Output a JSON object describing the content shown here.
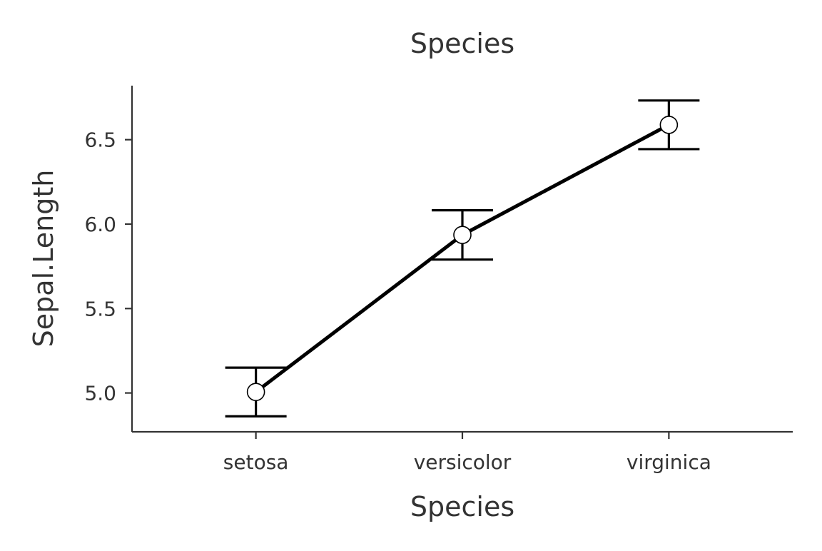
{
  "chart_data": {
    "type": "line",
    "title": "Species",
    "xlabel": "Species",
    "ylabel": "Sepal.Length",
    "categories": [
      "setosa",
      "versicolor",
      "virginica"
    ],
    "series": [
      {
        "values": [
          5.006,
          5.936,
          6.588
        ],
        "error_lower": [
          4.862,
          5.79,
          6.444
        ],
        "error_upper": [
          5.15,
          6.082,
          6.732
        ]
      }
    ],
    "ylim": [
      4.77,
      6.82
    ],
    "y_ticks": [
      5.0,
      5.5,
      6.0,
      6.5
    ],
    "y_tick_labels": [
      "5.0",
      "5.5",
      "6.0",
      "6.5"
    ],
    "grid": false,
    "legend": "none",
    "colors": {
      "line": "#000000",
      "marker_fill": "#ffffff",
      "axis": "#333333",
      "text": "#333333"
    }
  }
}
